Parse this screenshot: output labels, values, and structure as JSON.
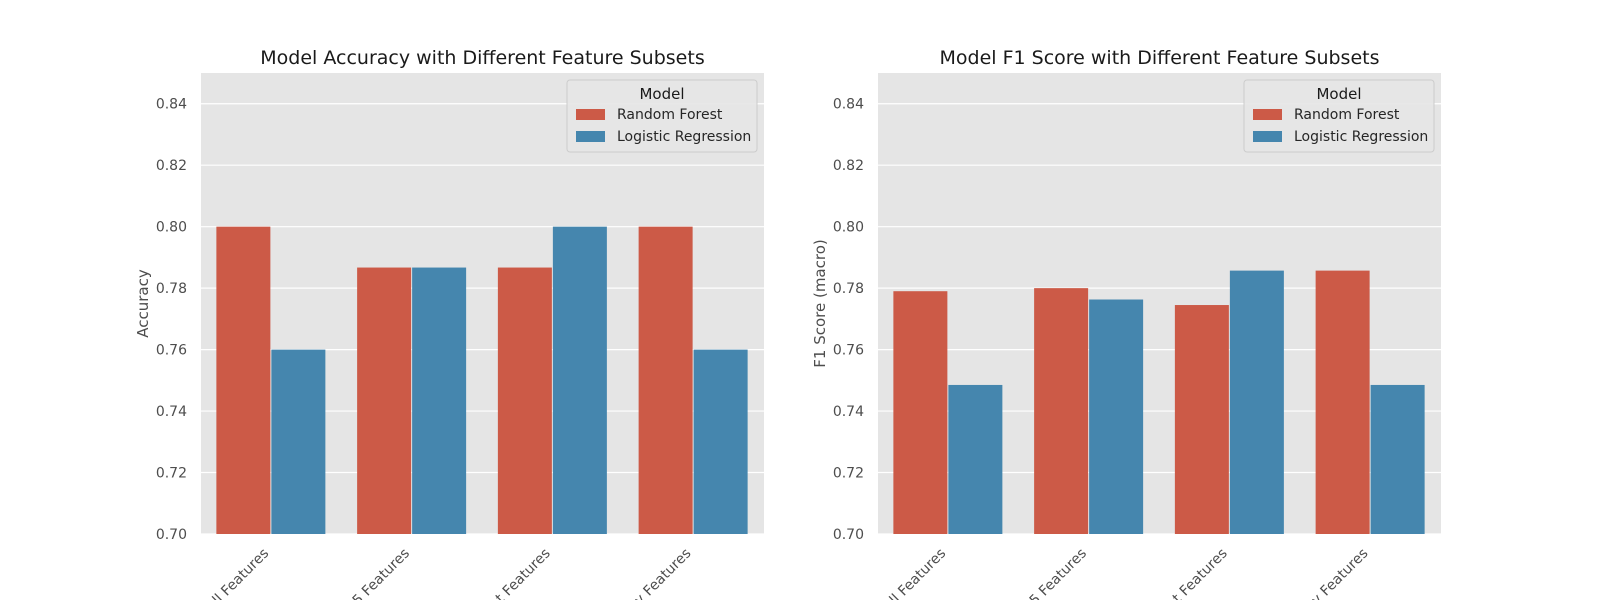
{
  "chart_data": [
    {
      "type": "bar",
      "title": "Model Accuracy with Different Feature Subsets",
      "xlabel": "",
      "ylabel": "Accuracy",
      "ylim": [
        0.7,
        0.85
      ],
      "yticks": [
        "0.70",
        "0.72",
        "0.74",
        "0.76",
        "0.78",
        "0.80",
        "0.82",
        "0.84"
      ],
      "categories": [
        "ll Features",
        "5 Features",
        "t Features",
        "y Features"
      ],
      "grid": true,
      "legend": {
        "title": "Model",
        "placement": "top-right"
      },
      "series": [
        {
          "name": "Random Forest",
          "color": "#cc5a47",
          "values": [
            0.8,
            0.7867,
            0.7867,
            0.8
          ]
        },
        {
          "name": "Logistic Regression",
          "color": "#4586ae",
          "values": [
            0.76,
            0.7867,
            0.8,
            0.76
          ]
        }
      ]
    },
    {
      "type": "bar",
      "title": "Model F1 Score with Different Feature Subsets",
      "xlabel": "",
      "ylabel": "F1 Score (macro)",
      "ylim": [
        0.7,
        0.85
      ],
      "yticks": [
        "0.70",
        "0.72",
        "0.74",
        "0.76",
        "0.78",
        "0.80",
        "0.82",
        "0.84"
      ],
      "categories": [
        "ll Features",
        "5 Features",
        "t Features",
        "y Features"
      ],
      "grid": true,
      "legend": {
        "title": "Model",
        "placement": "top-right"
      },
      "series": [
        {
          "name": "Random Forest",
          "color": "#cc5a47",
          "values": [
            0.779,
            0.78,
            0.7745,
            0.7857
          ]
        },
        {
          "name": "Logistic Regression",
          "color": "#4586ae",
          "values": [
            0.7485,
            0.7763,
            0.7857,
            0.7485
          ]
        }
      ]
    }
  ]
}
